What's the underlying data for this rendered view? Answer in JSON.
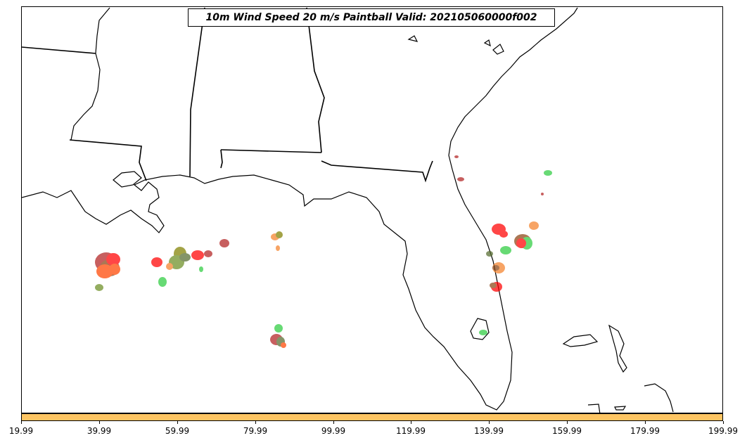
{
  "map": {
    "title": "10m Wind Speed 20 m/s Paintball Valid: 202105060000f002",
    "region": "US Gulf Coast and Florida",
    "land_color": "#ffffff",
    "boundary_color": "#000000",
    "paintball_colors": [
      "#ff0000",
      "#ff4500",
      "#f4822a",
      "#b22222",
      "#8b4513",
      "#2ecc40",
      "#6b8e23",
      "#808000",
      "#556b2f"
    ]
  },
  "colorbar": {
    "color": "#fec563",
    "ticks": [
      "19.99",
      "39.99",
      "59.99",
      "79.99",
      "99.99",
      "119.99",
      "139.99",
      "159.99",
      "179.99",
      "199.99"
    ]
  }
}
